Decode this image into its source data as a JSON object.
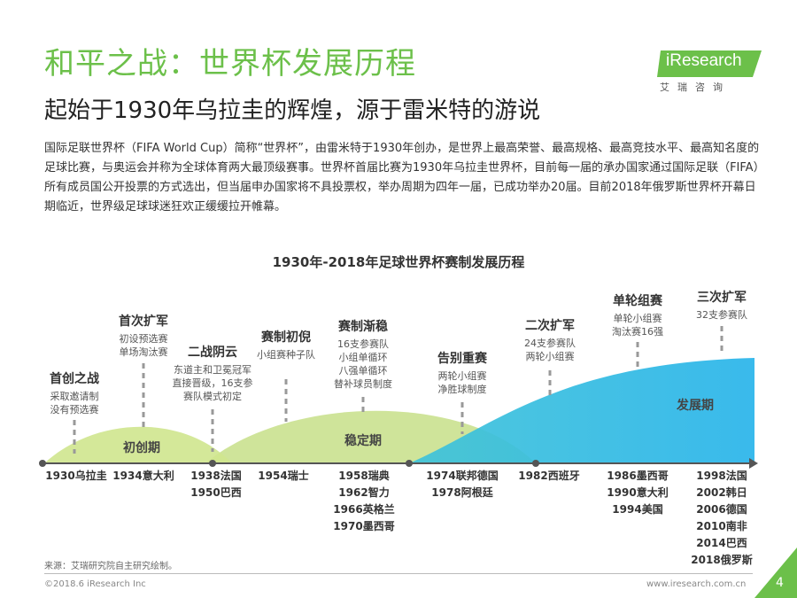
{
  "header": {
    "title": "和平之战：世界杯发展历程",
    "subtitle": "起始于1930年乌拉圭的辉煌，源于雷米特的游说",
    "description": "国际足联世界杯（FIFA World Cup）简称“世界杯”，由雷米特于1930年创办，是世界上最高荣誉、最高规格、最高竞技水平、最高知名度的足球比赛，与奥运会并称为全球体育两大最顶级赛事。世界杯首届比赛为1930年乌拉圭世界杯，目前每一届的承办国家通过国际足联（FIFA）所有成员国公开投票的方式选出，但当届申办国家将不具投票权，举办周期为四年一届，已成功举办20届。目前2018年俄罗斯世界杯开幕日期临近，世界级足球球迷狂欢正缓缓拉开帷幕。"
  },
  "logo": {
    "text": "iResearch",
    "sub": "艾瑞咨询"
  },
  "diagram": {
    "title": "1930年-2018年足球世界杯赛制发展历程",
    "phases": [
      "初创期",
      "稳定期",
      "发展期"
    ],
    "milestones": [
      {
        "heading": "首创之战",
        "lines": [
          "采取邀请制",
          "没有预选赛"
        ]
      },
      {
        "heading": "首次扩军",
        "lines": [
          "初设预选赛",
          "单场淘汰赛"
        ]
      },
      {
        "heading": "二战阴云",
        "lines": [
          "东道主和卫冕冠军",
          "直接晋级，16支参",
          "赛队模式初定"
        ]
      },
      {
        "heading": "赛制初倪",
        "lines": [
          "小组赛种子队"
        ]
      },
      {
        "heading": "赛制渐稳",
        "lines": [
          "16支参赛队",
          "小组单循环",
          "八强单循环",
          "替补球员制度"
        ]
      },
      {
        "heading": "告别重赛",
        "lines": [
          "两轮小组赛",
          "净胜球制度"
        ]
      },
      {
        "heading": "二次扩军",
        "lines": [
          "24支参赛队",
          "两轮小组赛"
        ]
      },
      {
        "heading": "单轮组赛",
        "lines": [
          "单轮小组赛",
          "淘汰赛16强"
        ]
      },
      {
        "heading": "三次扩军",
        "lines": [
          "32支参赛队"
        ]
      }
    ],
    "year_groups": [
      [
        "1930乌拉圭"
      ],
      [
        "1934意大利"
      ],
      [
        "1938法国",
        "1950巴西"
      ],
      [
        "1954瑞士"
      ],
      [
        "1958瑞典",
        "1962智力",
        "1966英格兰",
        "1970墨西哥"
      ],
      [
        "1974联邦德国",
        "1978阿根廷"
      ],
      [
        "1982西班牙"
      ],
      [
        "1986墨西哥",
        "1990意大利",
        "1994美国"
      ],
      [
        "1998法国",
        "2002韩日",
        "2006德国",
        "2010南非",
        "2014巴西",
        "2018俄罗斯"
      ]
    ]
  },
  "footer": {
    "source": "来源：艾瑞研究院自主研究绘制。",
    "copyright": "©2018.6 iResearch Inc",
    "website": "www.iresearch.com.cn",
    "page": "4"
  },
  "colors": {
    "green": "#6cc04a",
    "light_green": "#c8e38a",
    "pale_green": "#dcebb5",
    "cyan": "#29b6e8",
    "gray_line": "#555555"
  }
}
